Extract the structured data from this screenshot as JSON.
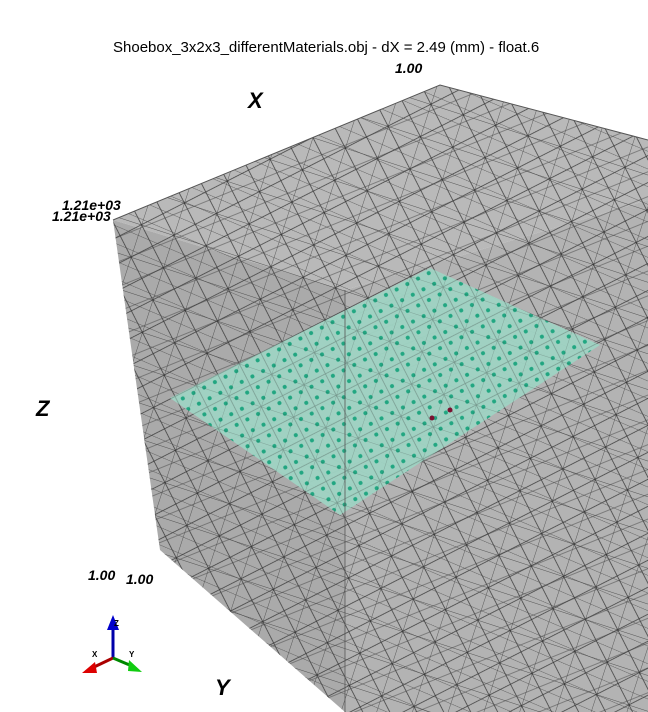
{
  "title": "Shoebox_3x2x3_differentMaterials.obj - dX = 2.49 (mm) - float.6",
  "axes": {
    "x_label": "X",
    "y_label": "Y",
    "z_label": "Z"
  },
  "tick_labels": [
    "1.00",
    "1.21e+03",
    "1.21e+03",
    "1.00",
    "1.00"
  ],
  "orientation": {
    "x": "X",
    "y": "Y",
    "z": "Z"
  }
}
